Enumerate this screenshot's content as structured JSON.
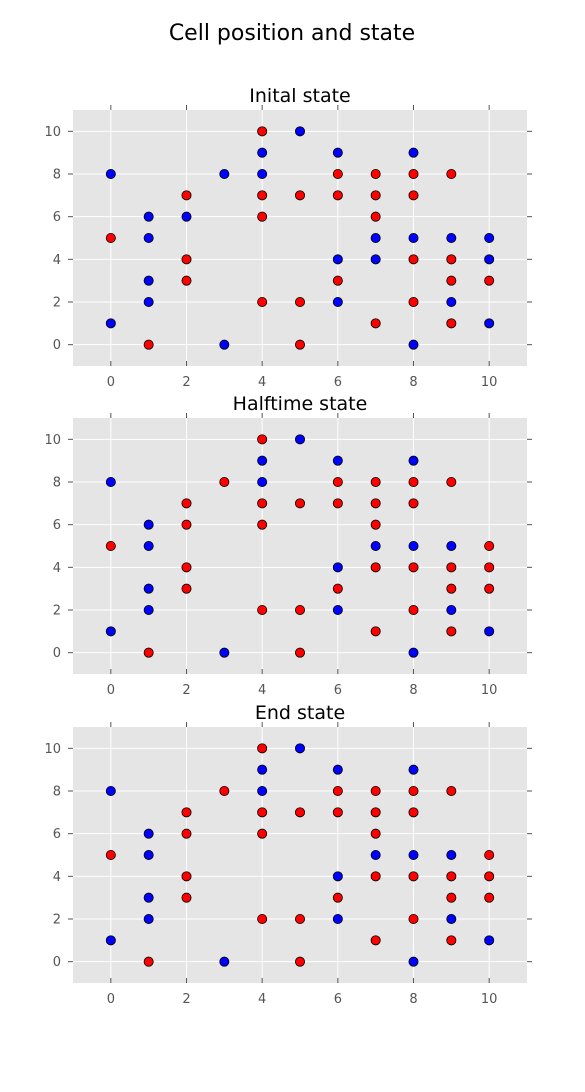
{
  "figure": {
    "title": "Cell position and state"
  },
  "colors": {
    "background": "#e5e5e5",
    "grid": "#ffffff",
    "state_a": "#0000ff",
    "state_b": "#ff0000",
    "marker_edge": "#000000"
  },
  "chart_data": [
    {
      "type": "scatter",
      "title": "Inital state",
      "xlim": [
        -1,
        11
      ],
      "ylim": [
        -1,
        11
      ],
      "xticks": [
        "0",
        "2",
        "4",
        "6",
        "8",
        "10"
      ],
      "yticks": [
        "0",
        "2",
        "4",
        "6",
        "8",
        "10"
      ],
      "grid": true,
      "series": [
        {
          "color": "#0000ff",
          "points": [
            [
              0,
              8
            ],
            [
              0,
              1
            ],
            [
              1,
              6
            ],
            [
              1,
              5
            ],
            [
              1,
              3
            ],
            [
              1,
              2
            ],
            [
              2,
              6
            ],
            [
              3,
              8
            ],
            [
              3,
              0
            ],
            [
              4,
              9
            ],
            [
              4,
              8
            ],
            [
              5,
              10
            ],
            [
              6,
              9
            ],
            [
              6,
              4
            ],
            [
              6,
              2
            ],
            [
              7,
              5
            ],
            [
              7,
              4
            ],
            [
              8,
              9
            ],
            [
              8,
              5
            ],
            [
              8,
              0
            ],
            [
              9,
              5
            ],
            [
              9,
              2
            ],
            [
              10,
              5
            ],
            [
              10,
              4
            ],
            [
              10,
              1
            ]
          ]
        },
        {
          "color": "#ff0000",
          "points": [
            [
              0,
              5
            ],
            [
              1,
              0
            ],
            [
              2,
              7
            ],
            [
              2,
              4
            ],
            [
              2,
              3
            ],
            [
              4,
              10
            ],
            [
              4,
              7
            ],
            [
              4,
              6
            ],
            [
              4,
              2
            ],
            [
              5,
              7
            ],
            [
              5,
              2
            ],
            [
              5,
              0
            ],
            [
              6,
              8
            ],
            [
              6,
              7
            ],
            [
              6,
              3
            ],
            [
              7,
              8
            ],
            [
              7,
              7
            ],
            [
              7,
              6
            ],
            [
              7,
              1
            ],
            [
              8,
              8
            ],
            [
              8,
              7
            ],
            [
              8,
              4
            ],
            [
              8,
              2
            ],
            [
              9,
              8
            ],
            [
              9,
              4
            ],
            [
              9,
              3
            ],
            [
              9,
              1
            ],
            [
              10,
              3
            ]
          ]
        }
      ]
    },
    {
      "type": "scatter",
      "title": "Halftime state",
      "xlim": [
        -1,
        11
      ],
      "ylim": [
        -1,
        11
      ],
      "xticks": [
        "0",
        "2",
        "4",
        "6",
        "8",
        "10"
      ],
      "yticks": [
        "0",
        "2",
        "4",
        "6",
        "8",
        "10"
      ],
      "grid": true,
      "series": [
        {
          "color": "#0000ff",
          "points": [
            [
              0,
              8
            ],
            [
              0,
              1
            ],
            [
              1,
              6
            ],
            [
              1,
              5
            ],
            [
              1,
              3
            ],
            [
              1,
              2
            ],
            [
              3,
              0
            ],
            [
              4,
              9
            ],
            [
              4,
              8
            ],
            [
              5,
              10
            ],
            [
              6,
              9
            ],
            [
              6,
              4
            ],
            [
              6,
              2
            ],
            [
              7,
              5
            ],
            [
              8,
              9
            ],
            [
              8,
              5
            ],
            [
              8,
              0
            ],
            [
              9,
              5
            ],
            [
              9,
              2
            ],
            [
              10,
              1
            ]
          ]
        },
        {
          "color": "#ff0000",
          "points": [
            [
              0,
              5
            ],
            [
              1,
              0
            ],
            [
              2,
              7
            ],
            [
              2,
              6
            ],
            [
              2,
              4
            ],
            [
              2,
              3
            ],
            [
              3,
              8
            ],
            [
              4,
              10
            ],
            [
              4,
              7
            ],
            [
              4,
              6
            ],
            [
              4,
              2
            ],
            [
              5,
              7
            ],
            [
              5,
              2
            ],
            [
              5,
              0
            ],
            [
              6,
              8
            ],
            [
              6,
              7
            ],
            [
              6,
              3
            ],
            [
              7,
              8
            ],
            [
              7,
              7
            ],
            [
              7,
              6
            ],
            [
              7,
              4
            ],
            [
              7,
              1
            ],
            [
              8,
              8
            ],
            [
              8,
              7
            ],
            [
              8,
              4
            ],
            [
              8,
              2
            ],
            [
              9,
              8
            ],
            [
              9,
              4
            ],
            [
              9,
              3
            ],
            [
              9,
              1
            ],
            [
              10,
              5
            ],
            [
              10,
              4
            ],
            [
              10,
              3
            ]
          ]
        }
      ]
    },
    {
      "type": "scatter",
      "title": "End state",
      "xlim": [
        -1,
        11
      ],
      "ylim": [
        -1,
        11
      ],
      "xticks": [
        "0",
        "2",
        "4",
        "6",
        "8",
        "10"
      ],
      "yticks": [
        "0",
        "2",
        "4",
        "6",
        "8",
        "10"
      ],
      "grid": true,
      "series": [
        {
          "color": "#0000ff",
          "points": [
            [
              0,
              8
            ],
            [
              0,
              1
            ],
            [
              1,
              6
            ],
            [
              1,
              5
            ],
            [
              1,
              3
            ],
            [
              1,
              2
            ],
            [
              3,
              0
            ],
            [
              4,
              9
            ],
            [
              4,
              8
            ],
            [
              5,
              10
            ],
            [
              6,
              9
            ],
            [
              6,
              4
            ],
            [
              6,
              2
            ],
            [
              7,
              5
            ],
            [
              8,
              9
            ],
            [
              8,
              5
            ],
            [
              8,
              0
            ],
            [
              9,
              5
            ],
            [
              9,
              2
            ],
            [
              10,
              1
            ]
          ]
        },
        {
          "color": "#ff0000",
          "points": [
            [
              0,
              5
            ],
            [
              1,
              0
            ],
            [
              2,
              7
            ],
            [
              2,
              6
            ],
            [
              2,
              4
            ],
            [
              2,
              3
            ],
            [
              3,
              8
            ],
            [
              4,
              10
            ],
            [
              4,
              7
            ],
            [
              4,
              6
            ],
            [
              4,
              2
            ],
            [
              5,
              7
            ],
            [
              5,
              2
            ],
            [
              5,
              0
            ],
            [
              6,
              8
            ],
            [
              6,
              7
            ],
            [
              6,
              3
            ],
            [
              7,
              8
            ],
            [
              7,
              7
            ],
            [
              7,
              6
            ],
            [
              7,
              4
            ],
            [
              7,
              1
            ],
            [
              8,
              8
            ],
            [
              8,
              7
            ],
            [
              8,
              4
            ],
            [
              8,
              2
            ],
            [
              9,
              8
            ],
            [
              9,
              4
            ],
            [
              9,
              3
            ],
            [
              9,
              1
            ],
            [
              10,
              5
            ],
            [
              10,
              4
            ],
            [
              10,
              3
            ]
          ]
        }
      ]
    }
  ]
}
